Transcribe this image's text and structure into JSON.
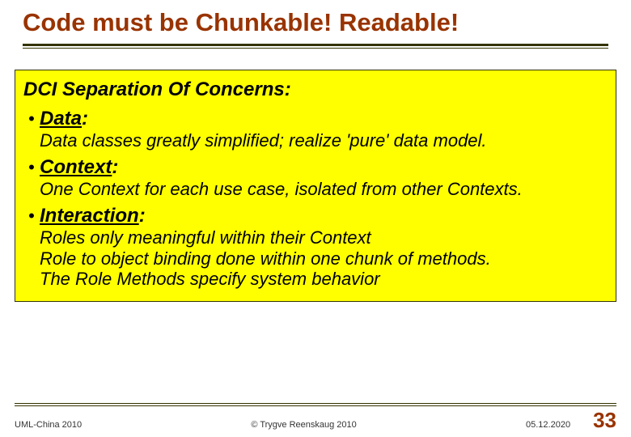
{
  "title": "Code must be Chunkable! Readable!",
  "section_heading": "DCI Separation Of Concerns:",
  "bullets": [
    {
      "label_underlined": "Data",
      "label_rest": ":",
      "desc_lines": [
        "Data classes greatly simplified; realize 'pure' data model."
      ]
    },
    {
      "label_underlined": "Context",
      "label_rest": ":",
      "desc_lines": [
        "One Context for each use case, isolated from other Contexts."
      ]
    },
    {
      "label_underlined": "Interaction",
      "label_rest": ":",
      "desc_lines": [
        "Roles only meaningful within their Context",
        "Role to object binding done within one chunk of methods.",
        "The Role Methods specify system behavior"
      ]
    }
  ],
  "footer": {
    "left": "UML-China 2010",
    "center": "© Trygve Reenskaug 2010",
    "date": "05.12.2020",
    "page": "33"
  },
  "colors": {
    "title": "#993300",
    "rule": "#333300",
    "box_bg": "#ffff00",
    "box_border": "#333300",
    "text": "#000000",
    "page_no": "#993300",
    "bg": "#ffffff"
  }
}
